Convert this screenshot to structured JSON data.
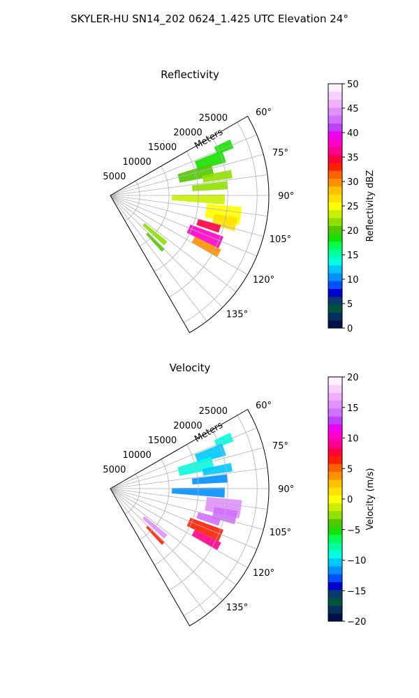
{
  "figure": {
    "title": "SKYLER-HU  SN14_202  0624_1.425 UTC Elevation 24°"
  },
  "chart_data": [
    {
      "type": "heatmap",
      "subtype": "polar-sector",
      "title": "Reflectivity",
      "range_label": "Meters",
      "theta_range_deg": [
        60,
        150
      ],
      "theta_ticks": [
        "60°",
        "75°",
        "90°",
        "105°",
        "120°",
        "135°"
      ],
      "radial_ticks": [
        "5000",
        "10000",
        "15000",
        "20000",
        "25000"
      ],
      "r_max": 27000,
      "grid": true,
      "colorbar": {
        "label": "Reflectivity dBZ",
        "min": 0,
        "max": 50,
        "ticks": [
          "0",
          "5",
          "10",
          "15",
          "20",
          "25",
          "30",
          "35",
          "40",
          "45",
          "50"
        ],
        "colors": [
          "#00104a",
          "#062f5e",
          "#00533f",
          "#0a3a6e",
          "#0000d0",
          "#0050ff",
          "#0090ff",
          "#00c8ff",
          "#00ffe0",
          "#00ffa0",
          "#00ff50",
          "#18e000",
          "#50c800",
          "#90e000",
          "#c8f000",
          "#ffff00",
          "#ffe000",
          "#ffc000",
          "#ff9000",
          "#ff6000",
          "#ff2000",
          "#ff0040",
          "#ff0090",
          "#ff00c8",
          "#f000f0",
          "#c040ff",
          "#d070ff",
          "#e090ff",
          "#f0b0ff",
          "#f8d0ff",
          "#fff0ff"
        ]
      },
      "cells": [
        {
          "theta": 67,
          "r": 21000,
          "dt": 4,
          "dr": 3000,
          "value": 18
        },
        {
          "theta": 71,
          "r": 18000,
          "dt": 6,
          "dr": 5000,
          "value": 19
        },
        {
          "theta": 76,
          "r": 15000,
          "dt": 7,
          "dr": 6000,
          "value": 20
        },
        {
          "theta": 80,
          "r": 18500,
          "dt": 4,
          "dr": 5000,
          "value": 21
        },
        {
          "theta": 85,
          "r": 17000,
          "dt": 4,
          "dr": 6000,
          "value": 22
        },
        {
          "theta": 92,
          "r": 15000,
          "dt": 5,
          "dr": 9000,
          "value": 23
        },
        {
          "theta": 99,
          "r": 19500,
          "dt": 8,
          "dr": 6000,
          "value": 25
        },
        {
          "theta": 103,
          "r": 20000,
          "dt": 6,
          "dr": 4000,
          "value": 27
        },
        {
          "theta": 107,
          "r": 17500,
          "dt": 4,
          "dr": 4000,
          "value": 35
        },
        {
          "theta": 113,
          "r": 17500,
          "dt": 6,
          "dr": 6000,
          "value": 38
        },
        {
          "theta": 118,
          "r": 18500,
          "dt": 4,
          "dr": 5000,
          "value": 30
        },
        {
          "theta": 131,
          "r": 10000,
          "dt": 4,
          "dr": 5000,
          "value": 21
        },
        {
          "theta": 136,
          "r": 11000,
          "dt": 3,
          "dr": 4000,
          "value": 20
        }
      ]
    },
    {
      "type": "heatmap",
      "subtype": "polar-sector",
      "title": "Velocity",
      "range_label": "Meters",
      "theta_range_deg": [
        60,
        150
      ],
      "theta_ticks": [
        "60°",
        "75°",
        "90°",
        "105°",
        "120°",
        "135°"
      ],
      "radial_ticks": [
        "5000",
        "10000",
        "15000",
        "20000",
        "25000"
      ],
      "r_max": 27000,
      "grid": true,
      "colorbar": {
        "label": "Velocity (m/s)",
        "min": -20,
        "max": 20,
        "ticks": [
          "−20",
          "−15",
          "−10",
          "−5",
          "0",
          "5",
          "10",
          "15",
          "20"
        ],
        "colors": [
          "#00104a",
          "#062f5e",
          "#00533f",
          "#0a3a6e",
          "#0000d0",
          "#0050ff",
          "#0090ff",
          "#00c8ff",
          "#00ffe0",
          "#00ffa0",
          "#00ff50",
          "#18e000",
          "#50c800",
          "#90e000",
          "#c8f000",
          "#ffff00",
          "#ffe000",
          "#ffc000",
          "#ff9000",
          "#ff6000",
          "#ff2000",
          "#ff0040",
          "#ff0090",
          "#ff00c8",
          "#f000f0",
          "#c040ff",
          "#d070ff",
          "#e090ff",
          "#f0b0ff",
          "#f8d0ff",
          "#fff0ff"
        ]
      },
      "cells": [
        {
          "theta": 67,
          "r": 21000,
          "dt": 4,
          "dr": 3000,
          "value": -9
        },
        {
          "theta": 71,
          "r": 18000,
          "dt": 6,
          "dr": 5000,
          "value": -10
        },
        {
          "theta": 76,
          "r": 15000,
          "dt": 7,
          "dr": 6000,
          "value": -9
        },
        {
          "theta": 80,
          "r": 18500,
          "dt": 4,
          "dr": 5000,
          "value": -10
        },
        {
          "theta": 85,
          "r": 17000,
          "dt": 4,
          "dr": 6000,
          "value": -11
        },
        {
          "theta": 92,
          "r": 15000,
          "dt": 5,
          "dr": 9000,
          "value": -12
        },
        {
          "theta": 99,
          "r": 19500,
          "dt": 8,
          "dr": 6000,
          "value": 15
        },
        {
          "theta": 103,
          "r": 20000,
          "dt": 6,
          "dr": 4000,
          "value": 14
        },
        {
          "theta": 107,
          "r": 17500,
          "dt": 4,
          "dr": 4000,
          "value": 14
        },
        {
          "theta": 113,
          "r": 17500,
          "dt": 6,
          "dr": 6000,
          "value": 6
        },
        {
          "theta": 118,
          "r": 18500,
          "dt": 4,
          "dr": 5000,
          "value": 9
        },
        {
          "theta": 131,
          "r": 10000,
          "dt": 4,
          "dr": 5000,
          "value": 15
        },
        {
          "theta": 136,
          "r": 11000,
          "dt": 3,
          "dr": 4000,
          "value": 6
        }
      ]
    }
  ]
}
